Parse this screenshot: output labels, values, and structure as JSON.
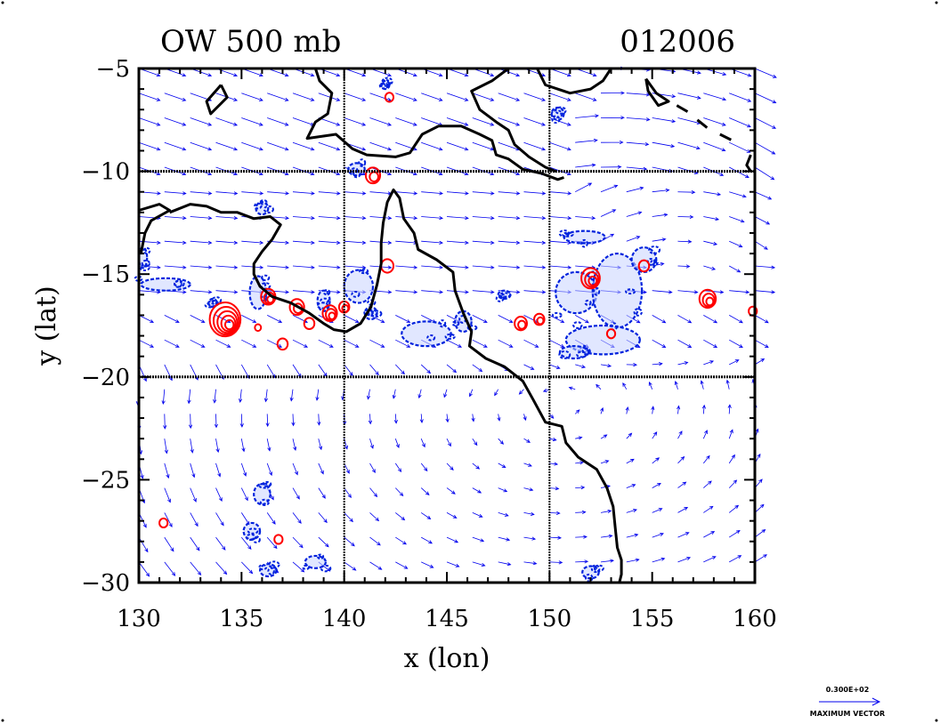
{
  "chart_data": {
    "type": "vector-contour-map",
    "title_left": "OW 500 mb",
    "title_right": "012006",
    "xlabel": "x (lon)",
    "ylabel": "y (lat)",
    "xlim": [
      130,
      160
    ],
    "ylim": [
      -30,
      -5
    ],
    "x_ticks": [
      130,
      135,
      140,
      145,
      150,
      155,
      160
    ],
    "x_tick_labels": [
      "130",
      "135",
      "140",
      "145",
      "150",
      "155",
      "160"
    ],
    "y_ticks": [
      -5,
      -10,
      -15,
      -20,
      -25,
      -30
    ],
    "y_tick_labels": [
      "−5",
      "−10",
      "−15",
      "−20",
      "−25",
      "−30"
    ],
    "gridlines": {
      "lon": [
        140,
        150
      ],
      "lat": [
        -10,
        -20
      ]
    },
    "colors": {
      "vectors": "#0000ee",
      "negative_contours": "#0022dd",
      "positive_contours": "#ff0000",
      "coastline": "#000000"
    },
    "vector_legend": {
      "value_label": "0.300E+02",
      "caption": "MAXIMUM VECTOR"
    },
    "coastlines": [
      [
        [
          138.6,
          -5.0
        ],
        [
          138.8,
          -5.6
        ],
        [
          139.4,
          -6.2
        ],
        [
          139.2,
          -7.2
        ],
        [
          138.6,
          -7.6
        ],
        [
          138.2,
          -8.4
        ],
        [
          139.6,
          -8.2
        ],
        [
          140.4,
          -8.9
        ],
        [
          141.1,
          -9.2
        ],
        [
          142.5,
          -9.3
        ],
        [
          143.2,
          -9.1
        ],
        [
          143.8,
          -8.2
        ],
        [
          144.6,
          -7.8
        ],
        [
          145.7,
          -7.8
        ],
        [
          146.6,
          -8.2
        ],
        [
          147.2,
          -8.5
        ],
        [
          147.4,
          -9.2
        ],
        [
          148.0,
          -9.4
        ],
        [
          148.7,
          -9.9
        ],
        [
          149.6,
          -10.1
        ],
        [
          150.4,
          -10.4
        ],
        [
          150.7,
          -10.3
        ]
      ],
      [
        [
          148.0,
          -5.0
        ],
        [
          147.2,
          -5.6
        ],
        [
          146.2,
          -6.1
        ],
        [
          146.6,
          -7.0
        ],
        [
          147.4,
          -7.6
        ],
        [
          148.0,
          -8.0
        ],
        [
          148.3,
          -8.7
        ],
        [
          149.0,
          -9.3
        ],
        [
          149.8,
          -9.8
        ],
        [
          150.3,
          -10.0
        ]
      ],
      [
        [
          149.4,
          -5.0
        ],
        [
          149.8,
          -5.8
        ],
        [
          151.0,
          -6.2
        ],
        [
          152.0,
          -6.0
        ],
        [
          152.6,
          -5.6
        ],
        [
          153.0,
          -5.0
        ]
      ],
      [
        [
          134.0,
          -5.8
        ],
        [
          133.3,
          -6.6
        ],
        [
          133.5,
          -7.2
        ],
        [
          134.3,
          -6.4
        ],
        [
          134.0,
          -5.8
        ]
      ],
      [
        [
          130.0,
          -11.9
        ],
        [
          131.0,
          -11.6
        ],
        [
          131.5,
          -11.9
        ],
        [
          130.6,
          -12.4
        ],
        [
          130.3,
          -13.0
        ],
        [
          130.1,
          -14.0
        ]
      ],
      [
        [
          131.5,
          -12.0
        ],
        [
          132.5,
          -11.6
        ],
        [
          133.3,
          -11.7
        ],
        [
          134.0,
          -12.0
        ],
        [
          134.8,
          -12.0
        ],
        [
          135.6,
          -12.3
        ],
        [
          136.4,
          -12.2
        ],
        [
          136.9,
          -12.6
        ],
        [
          136.5,
          -13.3
        ],
        [
          136.0,
          -13.9
        ],
        [
          135.6,
          -14.5
        ],
        [
          135.6,
          -15.0
        ],
        [
          135.9,
          -15.6
        ],
        [
          136.5,
          -16.1
        ],
        [
          137.4,
          -16.4
        ],
        [
          138.3,
          -16.9
        ],
        [
          139.0,
          -17.4
        ],
        [
          139.5,
          -17.7
        ],
        [
          140.1,
          -17.8
        ],
        [
          140.8,
          -17.4
        ],
        [
          141.3,
          -16.6
        ],
        [
          141.6,
          -15.5
        ],
        [
          141.8,
          -14.5
        ],
        [
          141.8,
          -13.5
        ],
        [
          141.9,
          -12.5
        ],
        [
          142.1,
          -11.5
        ],
        [
          142.4,
          -10.9
        ],
        [
          142.7,
          -11.3
        ],
        [
          142.9,
          -12.3
        ],
        [
          143.4,
          -13.0
        ],
        [
          143.6,
          -13.8
        ],
        [
          144.5,
          -14.3
        ],
        [
          145.3,
          -14.9
        ],
        [
          145.4,
          -15.8
        ],
        [
          145.8,
          -16.9
        ],
        [
          146.2,
          -17.8
        ],
        [
          146.1,
          -18.5
        ],
        [
          146.9,
          -19.1
        ],
        [
          147.8,
          -19.5
        ],
        [
          148.7,
          -20.2
        ],
        [
          149.2,
          -21.1
        ],
        [
          149.8,
          -22.2
        ],
        [
          150.6,
          -22.4
        ],
        [
          150.8,
          -23.2
        ],
        [
          151.4,
          -23.9
        ],
        [
          152.3,
          -24.5
        ],
        [
          152.8,
          -25.4
        ],
        [
          153.1,
          -26.3
        ],
        [
          153.2,
          -27.3
        ],
        [
          153.3,
          -28.3
        ],
        [
          153.5,
          -28.9
        ],
        [
          153.5,
          -29.6
        ],
        [
          153.4,
          -30.0
        ]
      ],
      [
        [
          154.7,
          -5.5
        ],
        [
          155.2,
          -6.2
        ],
        [
          155.8,
          -6.6
        ],
        [
          155.3,
          -6.8
        ],
        [
          154.8,
          -6.1
        ],
        [
          154.7,
          -5.5
        ]
      ],
      [
        [
          156.2,
          -6.8
        ],
        [
          156.9,
          -7.2
        ]
      ],
      [
        [
          157.2,
          -7.5
        ],
        [
          157.7,
          -7.9
        ]
      ],
      [
        [
          158.3,
          -8.2
        ],
        [
          158.9,
          -8.5
        ]
      ],
      [
        [
          159.8,
          -9.2
        ],
        [
          159.6,
          -9.7
        ],
        [
          159.8,
          -10.0
        ]
      ]
    ],
    "positive_centers": [
      {
        "lon": 134.2,
        "lat": -17.2,
        "r": 0.75,
        "n": 5
      },
      {
        "lon": 136.3,
        "lat": -16.1,
        "r": 0.35,
        "n": 3
      },
      {
        "lon": 137.7,
        "lat": -16.6,
        "r": 0.35,
        "n": 2
      },
      {
        "lon": 139.3,
        "lat": -16.9,
        "r": 0.35,
        "n": 3
      },
      {
        "lon": 140.0,
        "lat": -16.6,
        "r": 0.25,
        "n": 2
      },
      {
        "lon": 138.3,
        "lat": -17.4,
        "r": 0.25,
        "n": 1
      },
      {
        "lon": 141.4,
        "lat": -10.2,
        "r": 0.35,
        "n": 2
      },
      {
        "lon": 142.1,
        "lat": -14.6,
        "r": 0.3,
        "n": 1
      },
      {
        "lon": 142.2,
        "lat": -6.4,
        "r": 0.2,
        "n": 1
      },
      {
        "lon": 148.6,
        "lat": -17.4,
        "r": 0.3,
        "n": 2
      },
      {
        "lon": 149.5,
        "lat": -17.2,
        "r": 0.25,
        "n": 2
      },
      {
        "lon": 152.0,
        "lat": -15.2,
        "r": 0.45,
        "n": 3
      },
      {
        "lon": 154.6,
        "lat": -14.6,
        "r": 0.25,
        "n": 1
      },
      {
        "lon": 157.7,
        "lat": -16.2,
        "r": 0.4,
        "n": 3
      },
      {
        "lon": 159.9,
        "lat": -16.8,
        "r": 0.2,
        "n": 1
      },
      {
        "lon": 131.2,
        "lat": -27.1,
        "r": 0.2,
        "n": 1
      },
      {
        "lon": 136.8,
        "lat": -27.9,
        "r": 0.2,
        "n": 1
      },
      {
        "lon": 137.0,
        "lat": -18.4,
        "r": 0.25,
        "n": 1
      },
      {
        "lon": 135.8,
        "lat": -17.6,
        "r": 0.15,
        "n": 1
      },
      {
        "lon": 153.0,
        "lat": -17.9,
        "r": 0.2,
        "n": 1
      }
    ],
    "negative_blobs": [
      {
        "lon": 131.3,
        "lat": -15.5,
        "rx": 1.2,
        "ry": 0.3
      },
      {
        "lon": 130.2,
        "lat": -14.2,
        "rx": 0.2,
        "ry": 0.5
      },
      {
        "lon": 135.8,
        "lat": -15.9,
        "rx": 0.4,
        "ry": 0.8
      },
      {
        "lon": 139.0,
        "lat": -16.3,
        "rx": 0.3,
        "ry": 0.5
      },
      {
        "lon": 140.7,
        "lat": -15.6,
        "rx": 0.7,
        "ry": 0.8
      },
      {
        "lon": 141.3,
        "lat": -16.9,
        "rx": 0.3,
        "ry": 0.3
      },
      {
        "lon": 144.0,
        "lat": -17.9,
        "rx": 1.2,
        "ry": 0.6
      },
      {
        "lon": 145.8,
        "lat": -17.3,
        "rx": 0.4,
        "ry": 0.5
      },
      {
        "lon": 151.3,
        "lat": -15.9,
        "rx": 1.0,
        "ry": 1.0
      },
      {
        "lon": 153.3,
        "lat": -15.8,
        "rx": 1.2,
        "ry": 1.8
      },
      {
        "lon": 152.6,
        "lat": -18.2,
        "rx": 1.8,
        "ry": 0.7
      },
      {
        "lon": 151.7,
        "lat": -13.2,
        "rx": 1.0,
        "ry": 0.3
      },
      {
        "lon": 154.6,
        "lat": -14.3,
        "rx": 0.6,
        "ry": 0.6
      },
      {
        "lon": 151.2,
        "lat": -18.8,
        "rx": 0.7,
        "ry": 0.3
      },
      {
        "lon": 136.0,
        "lat": -25.7,
        "rx": 0.4,
        "ry": 0.5
      },
      {
        "lon": 135.5,
        "lat": -27.5,
        "rx": 0.4,
        "ry": 0.4
      },
      {
        "lon": 136.3,
        "lat": -29.4,
        "rx": 0.4,
        "ry": 0.3
      },
      {
        "lon": 138.6,
        "lat": -29.0,
        "rx": 0.5,
        "ry": 0.3
      },
      {
        "lon": 136.0,
        "lat": -11.8,
        "rx": 0.3,
        "ry": 0.3
      },
      {
        "lon": 140.6,
        "lat": -9.9,
        "rx": 0.4,
        "ry": 0.3
      },
      {
        "lon": 147.8,
        "lat": -16.0,
        "rx": 0.3,
        "ry": 0.2
      },
      {
        "lon": 152.0,
        "lat": -29.5,
        "rx": 0.4,
        "ry": 0.3
      },
      {
        "lon": 142.0,
        "lat": -5.8,
        "rx": 0.2,
        "ry": 0.2
      },
      {
        "lon": 150.4,
        "lat": -7.2,
        "rx": 0.3,
        "ry": 0.3
      },
      {
        "lon": 133.6,
        "lat": -16.4,
        "rx": 0.2,
        "ry": 0.2
      }
    ]
  }
}
